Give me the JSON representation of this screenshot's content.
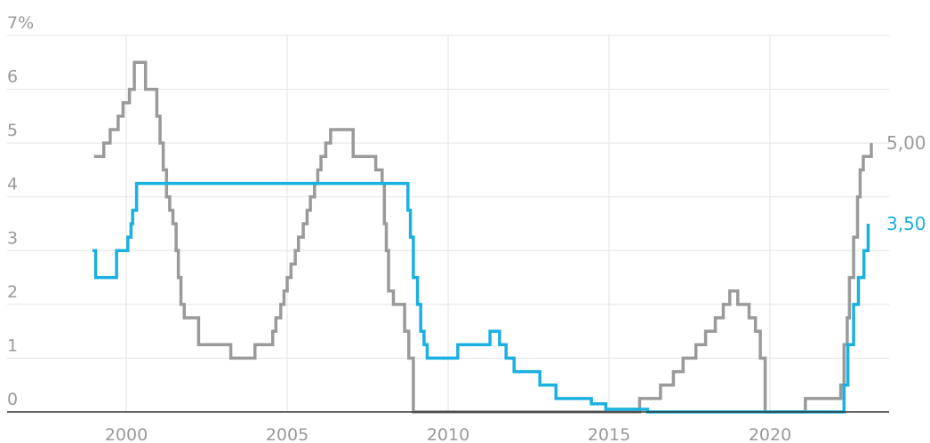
{
  "chart_data": {
    "type": "line",
    "title": "",
    "xlabel": "",
    "ylabel": "",
    "xlim": [
      1999,
      2023
    ],
    "ylim": [
      0,
      7
    ],
    "grid": true,
    "y_ticks": [
      {
        "value": 0,
        "label": "0"
      },
      {
        "value": 1,
        "label": "1"
      },
      {
        "value": 2,
        "label": "2"
      },
      {
        "value": 3,
        "label": "3"
      },
      {
        "value": 4,
        "label": "4"
      },
      {
        "value": 5,
        "label": "5"
      },
      {
        "value": 6,
        "label": "6"
      },
      {
        "value": 7,
        "label": "7%"
      }
    ],
    "x_ticks": [
      {
        "value": 2000,
        "label": "2000"
      },
      {
        "value": 2005,
        "label": "2005"
      },
      {
        "value": 2010,
        "label": "2010"
      },
      {
        "value": 2015,
        "label": "2015"
      },
      {
        "value": 2020,
        "label": "2020"
      }
    ],
    "series": [
      {
        "color": "#9a9a9a",
        "end_label": "5,00",
        "points": [
          [
            1999.0,
            4.75
          ],
          [
            1999.3,
            4.75
          ],
          [
            1999.3,
            5.0
          ],
          [
            1999.5,
            5.0
          ],
          [
            1999.5,
            5.25
          ],
          [
            1999.75,
            5.25
          ],
          [
            1999.75,
            5.5
          ],
          [
            1999.9,
            5.5
          ],
          [
            1999.9,
            5.75
          ],
          [
            2000.1,
            5.75
          ],
          [
            2000.1,
            6.0
          ],
          [
            2000.25,
            6.0
          ],
          [
            2000.25,
            6.5
          ],
          [
            2000.6,
            6.5
          ],
          [
            2000.6,
            6.0
          ],
          [
            2000.95,
            6.0
          ],
          [
            2000.95,
            5.5
          ],
          [
            2001.05,
            5.5
          ],
          [
            2001.05,
            5.0
          ],
          [
            2001.15,
            5.0
          ],
          [
            2001.15,
            4.5
          ],
          [
            2001.25,
            4.5
          ],
          [
            2001.25,
            4.0
          ],
          [
            2001.35,
            4.0
          ],
          [
            2001.35,
            3.75
          ],
          [
            2001.45,
            3.75
          ],
          [
            2001.45,
            3.5
          ],
          [
            2001.55,
            3.5
          ],
          [
            2001.55,
            3.0
          ],
          [
            2001.62,
            3.0
          ],
          [
            2001.62,
            2.5
          ],
          [
            2001.7,
            2.5
          ],
          [
            2001.7,
            2.0
          ],
          [
            2001.8,
            2.0
          ],
          [
            2001.8,
            1.75
          ],
          [
            2002.25,
            1.75
          ],
          [
            2002.25,
            1.25
          ],
          [
            2003.25,
            1.25
          ],
          [
            2003.25,
            1.0
          ],
          [
            2004.0,
            1.0
          ],
          [
            2004.0,
            1.25
          ],
          [
            2004.55,
            1.25
          ],
          [
            2004.55,
            1.5
          ],
          [
            2004.65,
            1.5
          ],
          [
            2004.65,
            1.75
          ],
          [
            2004.8,
            1.75
          ],
          [
            2004.8,
            2.0
          ],
          [
            2004.9,
            2.0
          ],
          [
            2004.9,
            2.25
          ],
          [
            2005.0,
            2.25
          ],
          [
            2005.0,
            2.5
          ],
          [
            2005.12,
            2.5
          ],
          [
            2005.12,
            2.75
          ],
          [
            2005.25,
            2.75
          ],
          [
            2005.25,
            3.0
          ],
          [
            2005.35,
            3.0
          ],
          [
            2005.35,
            3.25
          ],
          [
            2005.5,
            3.25
          ],
          [
            2005.5,
            3.5
          ],
          [
            2005.62,
            3.5
          ],
          [
            2005.62,
            3.75
          ],
          [
            2005.72,
            3.75
          ],
          [
            2005.72,
            4.0
          ],
          [
            2005.85,
            4.0
          ],
          [
            2005.85,
            4.25
          ],
          [
            2005.95,
            4.25
          ],
          [
            2005.95,
            4.5
          ],
          [
            2006.05,
            4.5
          ],
          [
            2006.05,
            4.75
          ],
          [
            2006.2,
            4.75
          ],
          [
            2006.2,
            5.0
          ],
          [
            2006.35,
            5.0
          ],
          [
            2006.35,
            5.25
          ],
          [
            2007.05,
            5.25
          ],
          [
            2007.05,
            4.75
          ],
          [
            2007.75,
            4.75
          ],
          [
            2007.75,
            4.5
          ],
          [
            2007.95,
            4.5
          ],
          [
            2007.95,
            4.25
          ],
          [
            2008.02,
            4.25
          ],
          [
            2008.02,
            3.5
          ],
          [
            2008.08,
            3.5
          ],
          [
            2008.08,
            3.0
          ],
          [
            2008.15,
            3.0
          ],
          [
            2008.15,
            2.25
          ],
          [
            2008.3,
            2.25
          ],
          [
            2008.3,
            2.0
          ],
          [
            2008.65,
            2.0
          ],
          [
            2008.65,
            1.5
          ],
          [
            2008.78,
            1.5
          ],
          [
            2008.78,
            1.0
          ],
          [
            2008.92,
            1.0
          ],
          [
            2008.92,
            0.0
          ],
          [
            2015.95,
            0.0
          ],
          [
            2015.95,
            0.25
          ],
          [
            2016.6,
            0.25
          ],
          [
            2016.6,
            0.5
          ],
          [
            2017.0,
            0.5
          ],
          [
            2017.0,
            0.75
          ],
          [
            2017.3,
            0.75
          ],
          [
            2017.3,
            1.0
          ],
          [
            2017.7,
            1.0
          ],
          [
            2017.7,
            1.25
          ],
          [
            2018.0,
            1.25
          ],
          [
            2018.0,
            1.5
          ],
          [
            2018.3,
            1.5
          ],
          [
            2018.3,
            1.75
          ],
          [
            2018.55,
            1.75
          ],
          [
            2018.55,
            2.0
          ],
          [
            2018.75,
            2.0
          ],
          [
            2018.75,
            2.25
          ],
          [
            2019.0,
            2.25
          ],
          [
            2019.0,
            2.0
          ],
          [
            2019.35,
            2.0
          ],
          [
            2019.35,
            1.75
          ],
          [
            2019.55,
            1.75
          ],
          [
            2019.55,
            1.5
          ],
          [
            2019.7,
            1.5
          ],
          [
            2019.7,
            1.0
          ],
          [
            2019.85,
            1.0
          ],
          [
            2019.85,
            0.0
          ],
          [
            2021.1,
            0.0
          ],
          [
            2021.1,
            0.25
          ],
          [
            2022.2,
            0.25
          ],
          [
            2022.2,
            0.5
          ],
          [
            2022.3,
            0.5
          ],
          [
            2022.3,
            1.25
          ],
          [
            2022.4,
            1.25
          ],
          [
            2022.4,
            1.75
          ],
          [
            2022.47,
            1.75
          ],
          [
            2022.47,
            2.5
          ],
          [
            2022.6,
            2.5
          ],
          [
            2022.6,
            3.25
          ],
          [
            2022.72,
            3.25
          ],
          [
            2022.72,
            4.0
          ],
          [
            2022.8,
            4.0
          ],
          [
            2022.8,
            4.5
          ],
          [
            2022.9,
            4.5
          ],
          [
            2022.9,
            4.75
          ],
          [
            2023.15,
            4.75
          ],
          [
            2023.15,
            5.0
          ]
        ]
      },
      {
        "color": "#1ab0e0",
        "end_label": "3,50",
        "points": [
          [
            1998.95,
            3.0
          ],
          [
            1999.05,
            3.0
          ],
          [
            1999.05,
            2.5
          ],
          [
            1999.7,
            2.5
          ],
          [
            1999.7,
            3.0
          ],
          [
            2000.05,
            3.0
          ],
          [
            2000.05,
            3.25
          ],
          [
            2000.15,
            3.25
          ],
          [
            2000.15,
            3.5
          ],
          [
            2000.2,
            3.5
          ],
          [
            2000.2,
            3.75
          ],
          [
            2000.32,
            3.75
          ],
          [
            2000.32,
            4.25
          ],
          [
            2008.75,
            4.25
          ],
          [
            2008.75,
            3.75
          ],
          [
            2008.83,
            3.75
          ],
          [
            2008.83,
            3.25
          ],
          [
            2008.92,
            3.25
          ],
          [
            2008.92,
            2.5
          ],
          [
            2009.05,
            2.5
          ],
          [
            2009.05,
            2.0
          ],
          [
            2009.15,
            2.0
          ],
          [
            2009.15,
            1.5
          ],
          [
            2009.25,
            1.5
          ],
          [
            2009.25,
            1.25
          ],
          [
            2009.35,
            1.25
          ],
          [
            2009.35,
            1.0
          ],
          [
            2010.3,
            1.0
          ],
          [
            2010.3,
            1.25
          ],
          [
            2011.3,
            1.25
          ],
          [
            2011.3,
            1.5
          ],
          [
            2011.6,
            1.5
          ],
          [
            2011.6,
            1.25
          ],
          [
            2011.8,
            1.25
          ],
          [
            2011.8,
            1.0
          ],
          [
            2012.05,
            1.0
          ],
          [
            2012.05,
            0.75
          ],
          [
            2012.85,
            0.75
          ],
          [
            2012.85,
            0.5
          ],
          [
            2013.35,
            0.5
          ],
          [
            2013.35,
            0.25
          ],
          [
            2014.45,
            0.25
          ],
          [
            2014.45,
            0.15
          ],
          [
            2014.9,
            0.15
          ],
          [
            2014.9,
            0.05
          ],
          [
            2016.2,
            0.05
          ],
          [
            2016.2,
            0.0
          ],
          [
            2022.3,
            0.0
          ],
          [
            2022.3,
            0.5
          ],
          [
            2022.42,
            0.5
          ],
          [
            2022.42,
            1.25
          ],
          [
            2022.6,
            1.25
          ],
          [
            2022.6,
            2.0
          ],
          [
            2022.75,
            2.0
          ],
          [
            2022.75,
            2.5
          ],
          [
            2022.92,
            2.5
          ],
          [
            2022.92,
            3.0
          ],
          [
            2023.05,
            3.0
          ],
          [
            2023.05,
            3.5
          ]
        ]
      }
    ]
  }
}
